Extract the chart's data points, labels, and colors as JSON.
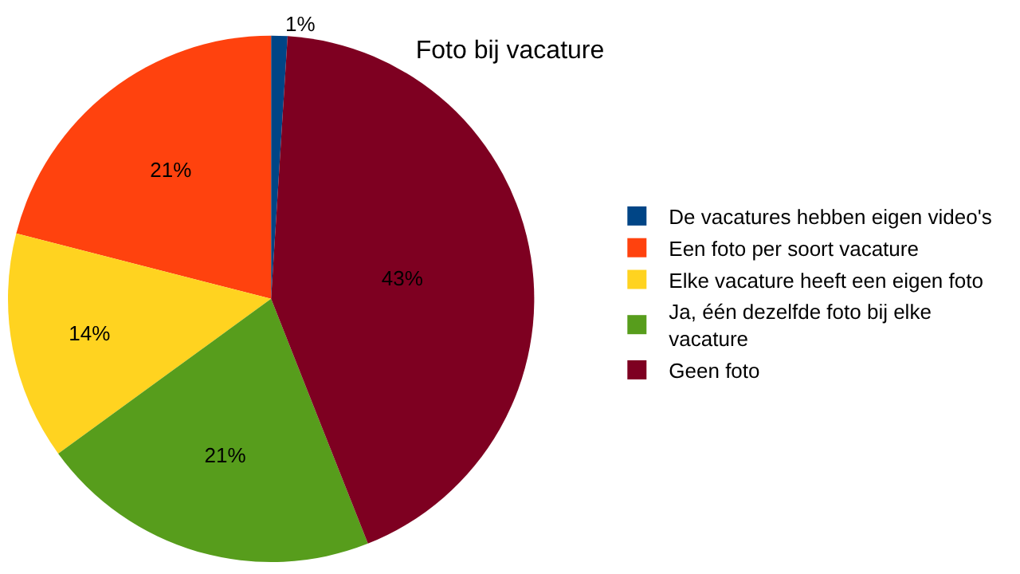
{
  "chart_data": {
    "type": "pie",
    "title": "Foto bij vacature",
    "categories": [
      "De vacatures hebben eigen video's",
      "Een foto per soort vacature",
      "Elke vacature heeft een eigen foto",
      "Ja, één dezelfde foto bij elke vacature",
      "Geen foto"
    ],
    "values": [
      1,
      21,
      14,
      21,
      43
    ],
    "value_labels": [
      "1%",
      "21%",
      "14%",
      "21%",
      "43%"
    ],
    "colors": [
      "#004586",
      "#ff420e",
      "#ffd320",
      "#579d1c",
      "#7e0021"
    ],
    "legend": "right"
  }
}
